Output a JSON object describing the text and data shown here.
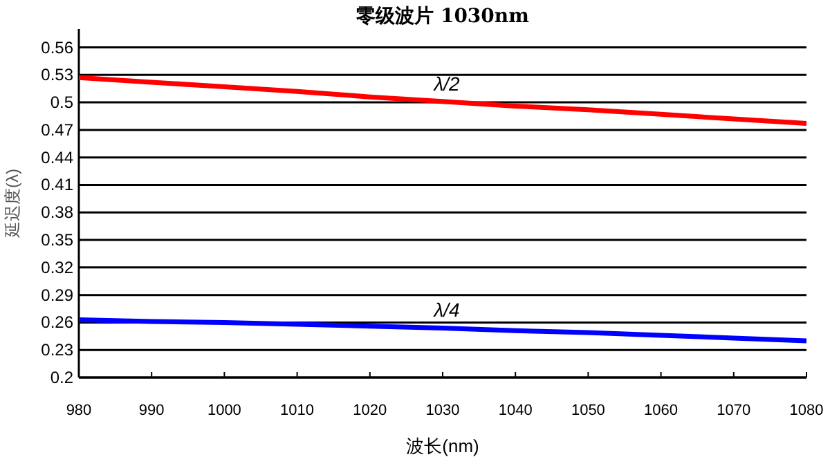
{
  "chart_data": {
    "type": "line",
    "title": "零级波片 1030nm",
    "xlabel": "波长(nm)",
    "ylabel": "延迟度(λ)",
    "x": [
      980,
      990,
      1000,
      1010,
      1020,
      1030,
      1040,
      1050,
      1060,
      1070,
      1080
    ],
    "series": [
      {
        "name": "λ/2",
        "color": "#ff0000",
        "values": [
          0.527,
          0.522,
          0.517,
          0.512,
          0.506,
          0.501,
          0.496,
          0.492,
          0.487,
          0.482,
          0.477
        ]
      },
      {
        "name": "λ/4",
        "color": "#0000ff",
        "values": [
          0.263,
          0.261,
          0.26,
          0.258,
          0.256,
          0.254,
          0.251,
          0.249,
          0.246,
          0.243,
          0.24
        ]
      }
    ],
    "xlim": [
      980,
      1080
    ],
    "xticks": [
      980,
      990,
      1000,
      1010,
      1020,
      1030,
      1040,
      1050,
      1060,
      1070,
      1080
    ],
    "ylim": [
      0.2,
      0.58
    ],
    "yticks": [
      0.2,
      0.23,
      0.26,
      0.29,
      0.32,
      0.35,
      0.38,
      0.41,
      0.44,
      0.47,
      0.5,
      0.53,
      0.56
    ],
    "grid": "y",
    "marker": "none",
    "line_style": "solid"
  }
}
